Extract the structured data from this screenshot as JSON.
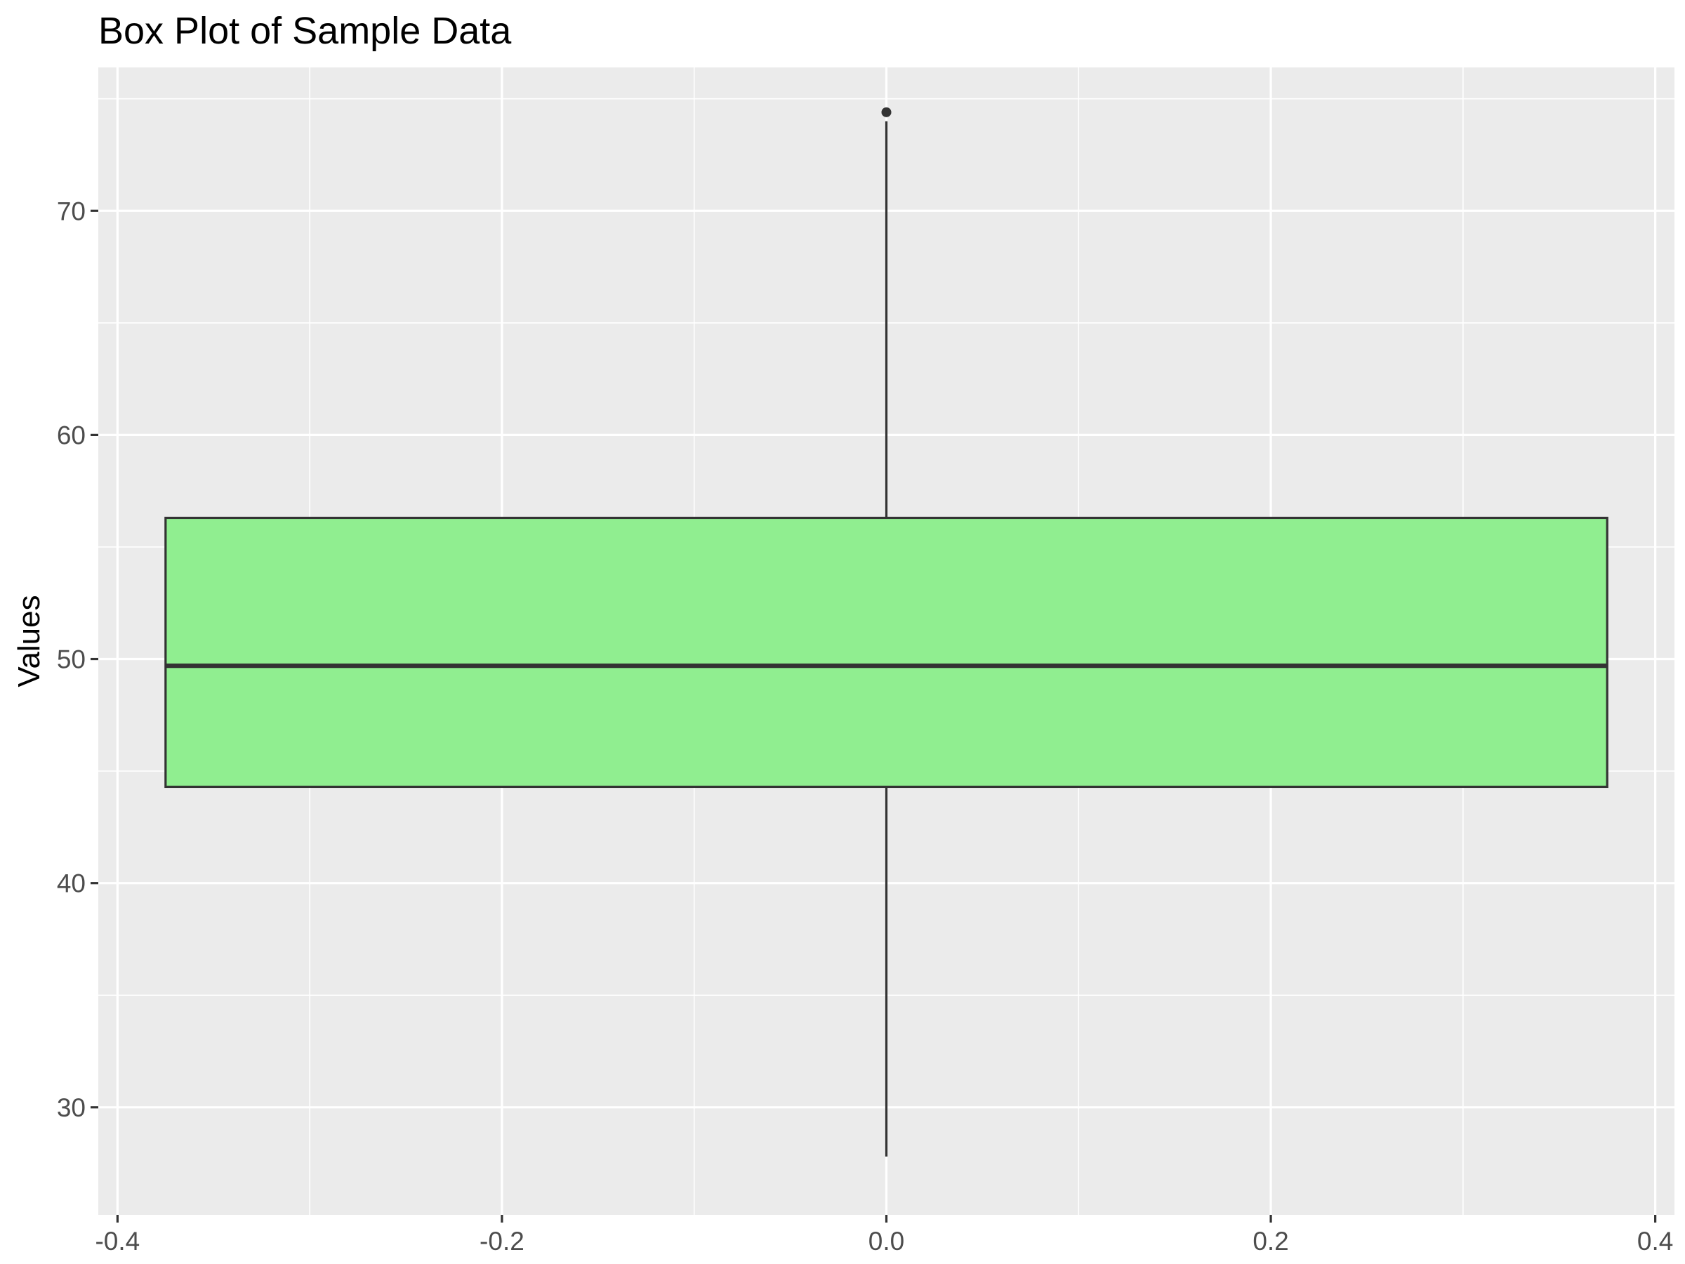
{
  "chart_data": {
    "type": "box",
    "title": "Box Plot of Sample Data",
    "xlabel": "",
    "ylabel": "Values",
    "xlim": [
      -0.41,
      0.41
    ],
    "ylim": [
      25.2,
      76.4
    ],
    "x_ticks": [
      -0.4,
      -0.2,
      0.0,
      0.2,
      0.4
    ],
    "x_tick_labels": [
      "-0.4",
      "-0.2",
      "0.0",
      "0.2",
      "0.4"
    ],
    "y_ticks": [
      30,
      40,
      50,
      60,
      70
    ],
    "y_tick_labels": [
      "30",
      "40",
      "50",
      "60",
      "70"
    ],
    "grid": true,
    "legend": "none",
    "colors": {
      "panel_background": "#ebebeb",
      "grid": "#ffffff",
      "box_fill": "#90ee90",
      "box_outline": "#333333"
    },
    "boxes": [
      {
        "x": 0.0,
        "x_range": [
          -0.375,
          0.375
        ],
        "whisker_low": 27.8,
        "q1": 44.3,
        "median": 49.7,
        "q3": 56.3,
        "whisker_high": 74.0,
        "outliers": [
          74.4
        ]
      }
    ]
  }
}
